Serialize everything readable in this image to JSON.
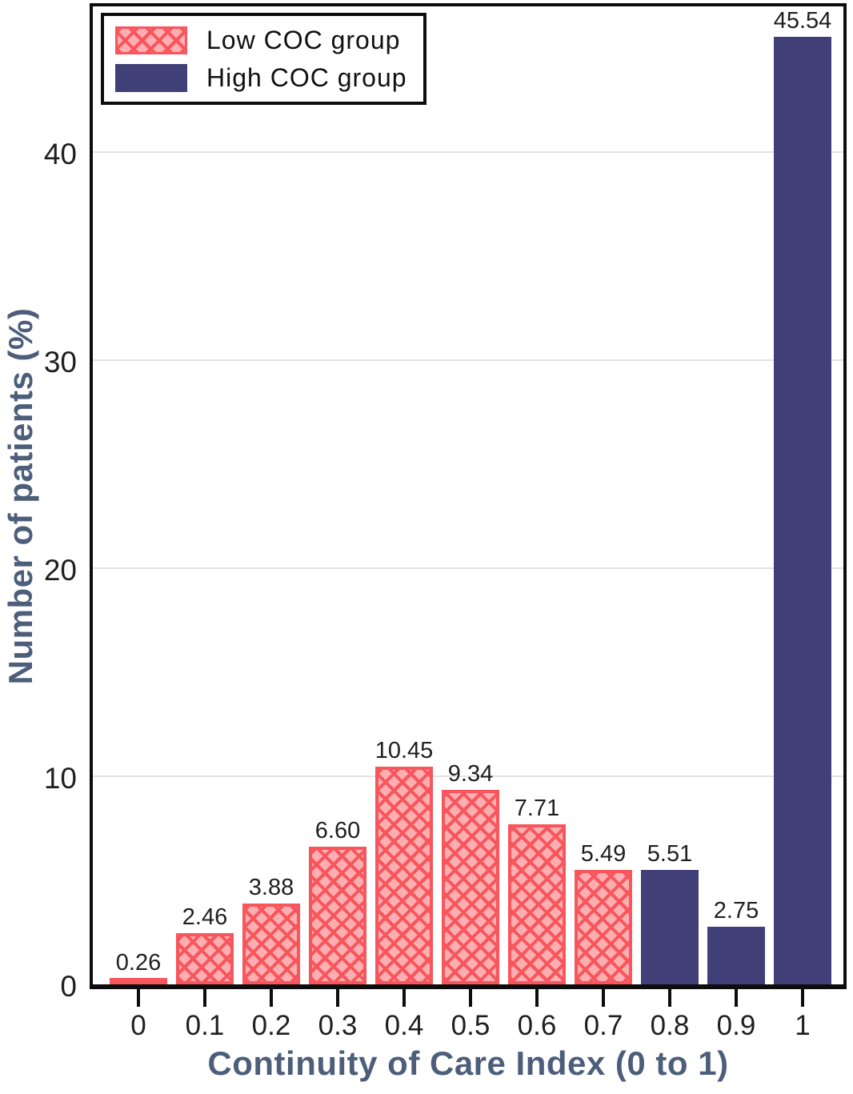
{
  "chart_data": {
    "type": "bar",
    "title": "",
    "xlabel": "Continuity of Care Index (0 to 1)",
    "ylabel": "Number of patients (%)",
    "categories": [
      "0",
      "0.1",
      "0.2",
      "0.3",
      "0.4",
      "0.5",
      "0.6",
      "0.7",
      "0.8",
      "0.9",
      "1"
    ],
    "values": [
      0.26,
      2.46,
      3.88,
      6.6,
      10.45,
      9.34,
      7.71,
      5.49,
      5.51,
      2.75,
      45.54
    ],
    "value_labels": [
      "0.26",
      "2.46",
      "3.88",
      "6.60",
      "10.45",
      "9.34",
      "7.71",
      "5.49",
      "5.51",
      "2.75",
      "45.54"
    ],
    "groups": [
      "low",
      "low",
      "low",
      "low",
      "low",
      "low",
      "low",
      "low",
      "high",
      "high",
      "high"
    ],
    "y_ticks": [
      0,
      10,
      20,
      30,
      40
    ],
    "ylim": [
      0,
      47
    ],
    "grid": "horizontal",
    "legend_position": "top-left",
    "legend": [
      {
        "label": "Low COC group",
        "style": "crosshatch",
        "fill": "#fcaeb1",
        "line": "#f8555c"
      },
      {
        "label": "High COC group",
        "style": "solid",
        "fill": "#413f77"
      }
    ],
    "colors": {
      "low_fill": "#fcaeb1",
      "low_line": "#f8555c",
      "high_fill": "#413f77",
      "axis_title": "#4d5e7b",
      "tick_text": "#1f1f1f",
      "gridline": "#e3e3e3",
      "frame": "#0d0d0d"
    }
  }
}
